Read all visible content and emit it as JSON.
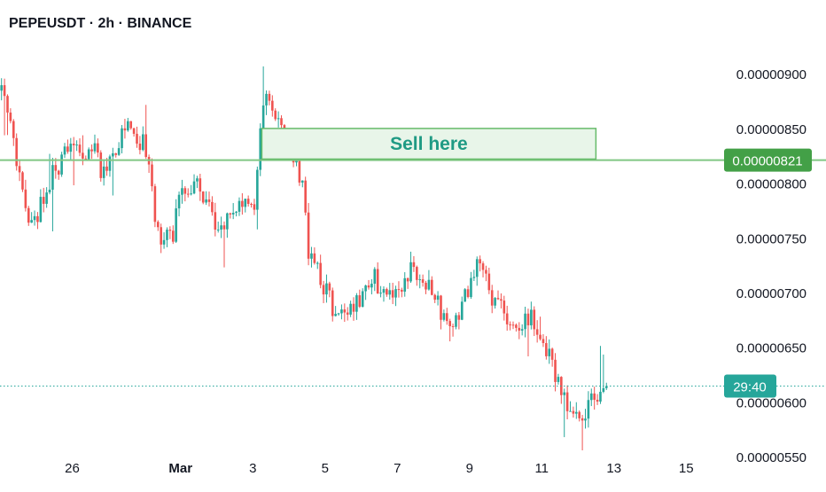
{
  "header": {
    "title": "PEPEUSDT · 2h · BINANCE"
  },
  "colors": {
    "up": "#26a69a",
    "down": "#ef5350",
    "level": "#81c784",
    "level_badge": "#43a047",
    "annotation_fill": "#e8f5e9",
    "annotation_border": "#66bb6a",
    "annotation_text": "#1f9a84"
  },
  "chart_data": {
    "type": "candlestick",
    "title": "PEPEUSDT · 2h · BINANCE",
    "x_tick_labels": [
      "26",
      "Mar",
      "3",
      "5",
      "7",
      "9",
      "11",
      "13",
      "15"
    ],
    "y_tick_labels": [
      "0.00000900",
      "0.00000850",
      "0.00000800",
      "0.00000750",
      "0.00000700",
      "0.00000650",
      "0.00000600",
      "0.00000550"
    ],
    "y_ticks": [
      9e-06,
      8.5e-06,
      8e-06,
      7.5e-06,
      7e-06,
      6.5e-06,
      6e-06,
      5.5e-06
    ],
    "ylim": [
      5.42e-06,
      9.35e-06
    ],
    "xlim": [
      "2025-02-24",
      "2025-03-16"
    ],
    "grid": false,
    "horizontal_level": {
      "value": 8.21e-06,
      "label": "0.00000821"
    },
    "current_price": {
      "value": 6.145e-06,
      "countdown": "29:40"
    },
    "annotation": {
      "text": "Sell here",
      "x_start": "2025-03-03 06:00",
      "x_end": "2025-03-12 12:00",
      "y_low": 8.22e-06,
      "y_high": 8.5e-06
    },
    "price_path": [
      [
        "2025-02-23 22:00",
        8.95e-06
      ],
      [
        "2025-02-24 06:00",
        8.7e-06
      ],
      [
        "2025-02-24 12:00",
        8.2e-06
      ],
      [
        "2025-02-24 18:00",
        7.75e-06
      ],
      [
        "2025-02-25 00:00",
        7.6e-06
      ],
      [
        "2025-02-25 08:00",
        8e-06
      ],
      [
        "2025-02-25 14:00",
        8.1e-06
      ],
      [
        "2025-02-25 20:00",
        8.3e-06
      ],
      [
        "2025-02-26 06:00",
        8.25e-06
      ],
      [
        "2025-02-26 14:00",
        8.35e-06
      ],
      [
        "2025-02-26 20:00",
        8.1e-06
      ],
      [
        "2025-02-27 04:00",
        8.3e-06
      ],
      [
        "2025-02-27 12:00",
        8.5e-06
      ],
      [
        "2025-02-27 18:00",
        8.45e-06
      ],
      [
        "2025-02-28 00:00",
        8.35e-06
      ],
      [
        "2025-02-28 04:00",
        8.1e-06
      ],
      [
        "2025-02-28 08:00",
        7.7e-06
      ],
      [
        "2025-02-28 14:00",
        7.45e-06
      ],
      [
        "2025-02-28 20:00",
        7.55e-06
      ],
      [
        "2025-03-01 02:00",
        7.95e-06
      ],
      [
        "2025-03-01 08:00",
        7.95e-06
      ],
      [
        "2025-03-01 14:00",
        7.95e-06
      ],
      [
        "2025-03-01 20:00",
        7.75e-06
      ],
      [
        "2025-03-02 00:00",
        7.55e-06
      ],
      [
        "2025-03-02 08:00",
        7.7e-06
      ],
      [
        "2025-03-02 14:00",
        7.75e-06
      ],
      [
        "2025-03-02 20:00",
        7.8e-06
      ],
      [
        "2025-03-03 02:00",
        7.8e-06
      ],
      [
        "2025-03-03 06:00",
        8.6e-06
      ],
      [
        "2025-03-03 10:00",
        8.85e-06
      ],
      [
        "2025-03-03 14:00",
        8.7e-06
      ],
      [
        "2025-03-03 20:00",
        8.45e-06
      ],
      [
        "2025-03-04 02:00",
        8.3e-06
      ],
      [
        "2025-03-04 06:00",
        8.2e-06
      ],
      [
        "2025-03-04 10:00",
        7.95e-06
      ],
      [
        "2025-03-04 14:00",
        7.4e-06
      ],
      [
        "2025-03-04 20:00",
        7.2e-06
      ],
      [
        "2025-03-05 02:00",
        7e-06
      ],
      [
        "2025-03-05 08:00",
        6.8e-06
      ],
      [
        "2025-03-05 14:00",
        6.9e-06
      ],
      [
        "2025-03-05 20:00",
        6.85e-06
      ],
      [
        "2025-03-06 04:00",
        7e-06
      ],
      [
        "2025-03-06 10:00",
        7.15e-06
      ],
      [
        "2025-03-06 16:00",
        6.95e-06
      ],
      [
        "2025-03-06 22:00",
        7.05e-06
      ],
      [
        "2025-03-07 04:00",
        7.1e-06
      ],
      [
        "2025-03-07 12:00",
        7.25e-06
      ],
      [
        "2025-03-07 18:00",
        7.1e-06
      ],
      [
        "2025-03-08 00:00",
        7e-06
      ],
      [
        "2025-03-08 06:00",
        6.85e-06
      ],
      [
        "2025-03-08 12:00",
        6.75e-06
      ],
      [
        "2025-03-08 18:00",
        6.8e-06
      ],
      [
        "2025-03-09 00:00",
        7.05e-06
      ],
      [
        "2025-03-09 06:00",
        7.25e-06
      ],
      [
        "2025-03-09 12:00",
        7.1e-06
      ],
      [
        "2025-03-09 18:00",
        6.9e-06
      ],
      [
        "2025-03-10 02:00",
        6.8e-06
      ],
      [
        "2025-03-10 10:00",
        6.75e-06
      ],
      [
        "2025-03-10 18:00",
        6.75e-06
      ],
      [
        "2025-03-11 00:00",
        6.65e-06
      ],
      [
        "2025-03-11 06:00",
        6.45e-06
      ],
      [
        "2025-03-11 10:00",
        6.2e-06
      ],
      [
        "2025-03-11 16:00",
        6e-06
      ],
      [
        "2025-03-11 22:00",
        5.85e-06
      ],
      [
        "2025-03-12 04:00",
        5.9e-06
      ],
      [
        "2025-03-12 10:00",
        6e-06
      ],
      [
        "2025-03-12 14:00",
        6.1e-06
      ],
      [
        "2025-03-12 18:00",
        6.15e-06
      ]
    ]
  }
}
